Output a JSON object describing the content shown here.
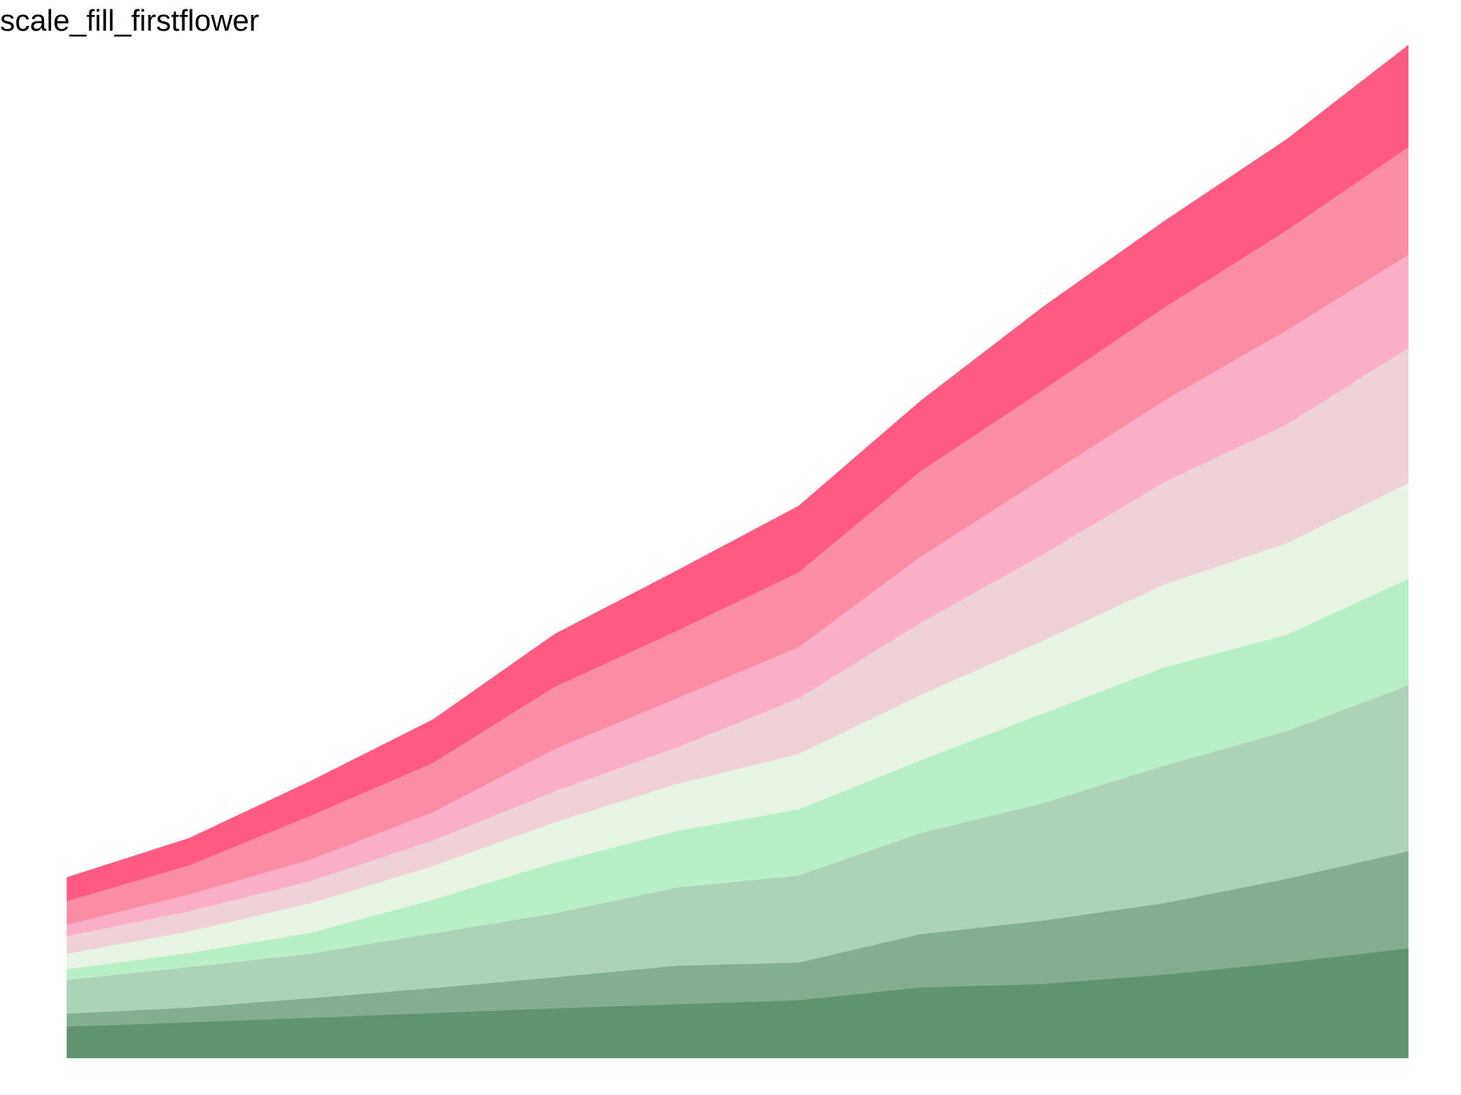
{
  "chart_data": {
    "type": "area",
    "stacked": true,
    "title": "scale_fill_firstflower",
    "xlabel": "",
    "ylabel": "",
    "axes_visible": false,
    "grid": false,
    "legend": "none",
    "x": [
      1,
      2,
      3,
      4,
      5,
      6,
      7,
      8,
      9,
      10,
      11,
      12
    ],
    "ylim": [
      0,
      150
    ],
    "series": [
      {
        "color": "#5E9470",
        "values": [
          4.7,
          5.3,
          6.0,
          6.7,
          7.4,
          8.0,
          8.6,
          10.5,
          11.0,
          12.4,
          14.2,
          16.3
        ]
      },
      {
        "color": "#82AF8F",
        "values": [
          1.9,
          2.2,
          2.9,
          3.7,
          4.6,
          5.7,
          5.6,
          7.9,
          9.4,
          10.6,
          12.4,
          14.4
        ]
      },
      {
        "color": "#ACD3B8",
        "values": [
          5.0,
          6.0,
          6.6,
          8.1,
          9.5,
          11.6,
          12.9,
          15.0,
          17.4,
          20.4,
          21.9,
          24.6
        ]
      },
      {
        "color": "#B7EFC7",
        "values": [
          1.6,
          2.1,
          3.1,
          5.0,
          7.5,
          8.4,
          9.8,
          10.8,
          13.3,
          14.6,
          14.3,
          15.8
        ]
      },
      {
        "color": "#E8F4E3",
        "values": [
          2.3,
          3.2,
          4.4,
          5.0,
          6.0,
          7.0,
          8.2,
          9.7,
          10.8,
          12.3,
          13.6,
          14.2
        ]
      },
      {
        "color": "#EFD2D7",
        "values": [
          2.6,
          3.0,
          3.3,
          3.8,
          4.6,
          5.4,
          8.3,
          10.7,
          12.8,
          15.2,
          17.6,
          20.1
        ]
      },
      {
        "color": "#FBAEC8",
        "values": [
          1.7,
          2.5,
          3.2,
          4.2,
          6.3,
          7.3,
          7.6,
          9.8,
          11.3,
          12.1,
          14.0,
          13.8
        ]
      },
      {
        "color": "#F98DA5",
        "values": [
          3.5,
          4.3,
          6.5,
          7.3,
          9.2,
          10.0,
          11.1,
          12.7,
          13.1,
          13.8,
          14.8,
          16.0
        ]
      },
      {
        "color": "#FF5A81",
        "values": [
          3.5,
          4.0,
          5.1,
          6.4,
          7.8,
          8.9,
          9.8,
          10.4,
          12.3,
          12.8,
          13.5,
          15.1
        ]
      }
    ]
  }
}
